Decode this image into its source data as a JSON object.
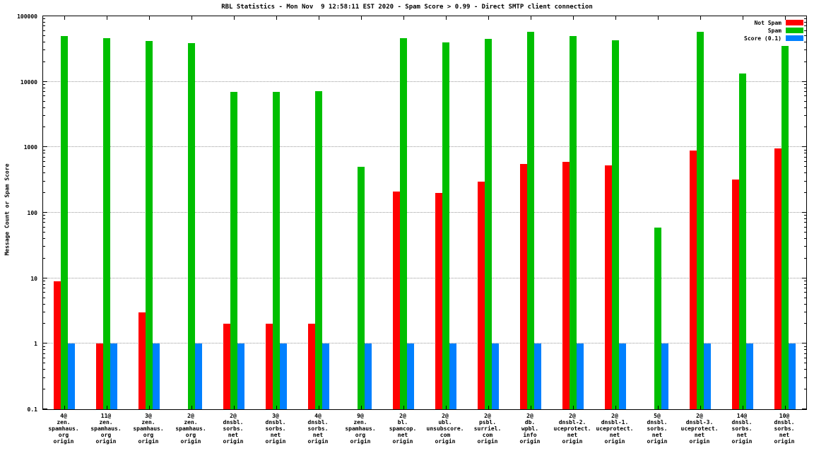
{
  "title": "RBL Statistics - Mon Nov  9 12:58:11 EST 2020 - Spam Score > 0.99 - Direct SMTP client connection",
  "y_axis_title": "Message Count or Spam Score",
  "chart_data": {
    "type": "bar",
    "log_y": true,
    "ylim": [
      0.1,
      100000
    ],
    "y_tick_labels": [
      "0.1",
      "1",
      "10",
      "100",
      "1000",
      "10000",
      "100000"
    ],
    "grid": true,
    "legend_position": "top-right",
    "categories": [
      [
        "4@",
        "zen.",
        "spamhaus.",
        "org",
        "origin"
      ],
      [
        "11@",
        "zen.",
        "spamhaus.",
        "org",
        "origin"
      ],
      [
        "3@",
        "zen.",
        "spamhaus.",
        "org",
        "origin"
      ],
      [
        "2@",
        "zen.",
        "spamhaus.",
        "org",
        "origin"
      ],
      [
        "2@",
        "dnsbl.",
        "sorbs.",
        "net",
        "origin"
      ],
      [
        "3@",
        "dnsbl.",
        "sorbs.",
        "net",
        "origin"
      ],
      [
        "4@",
        "dnsbl.",
        "sorbs.",
        "net",
        "origin"
      ],
      [
        "9@",
        "zen.",
        "spamhaus.",
        "org",
        "origin"
      ],
      [
        "2@",
        "bl.",
        "spamcop.",
        "net",
        "origin"
      ],
      [
        "2@",
        "ubl.",
        "unsubscore.",
        "com",
        "origin"
      ],
      [
        "2@",
        "psbl.",
        "surriel.",
        "com",
        "origin"
      ],
      [
        "2@",
        "db.",
        "wpbl.",
        "info",
        "origin"
      ],
      [
        "2@",
        "dnsbl-2.",
        "uceprotect.",
        "net",
        "origin"
      ],
      [
        "2@",
        "dnsbl-1.",
        "uceprotect.",
        "net",
        "origin"
      ],
      [
        "5@",
        "dnsbl.",
        "sorbs.",
        "net",
        "origin"
      ],
      [
        "2@",
        "dnsbl-3.",
        "uceprotect.",
        "net",
        "origin"
      ],
      [
        "14@",
        "dnsbl.",
        "sorbs.",
        "net",
        "origin"
      ],
      [
        "10@",
        "dnsbl.",
        "sorbs.",
        "net",
        "origin"
      ]
    ],
    "series": [
      {
        "name": "Not Spam",
        "color": "#ff0000",
        "values": [
          9,
          1,
          3,
          0,
          2,
          2,
          2,
          0,
          210,
          200,
          300,
          550,
          600,
          530,
          0,
          900,
          320,
          950
        ]
      },
      {
        "name": "Spam",
        "color": "#00bf00",
        "values": [
          50000,
          46000,
          42000,
          39000,
          7000,
          7000,
          7200,
          500,
          46000,
          40000,
          45000,
          58000,
          50000,
          43000,
          60,
          58000,
          13500,
          35000
        ]
      },
      {
        "name": "Score (0.1)",
        "color": "#0080ff",
        "values": [
          1,
          1,
          1,
          1,
          1,
          1,
          1,
          1,
          1,
          1,
          1,
          1,
          1,
          1,
          1,
          1,
          1,
          1
        ]
      }
    ]
  }
}
